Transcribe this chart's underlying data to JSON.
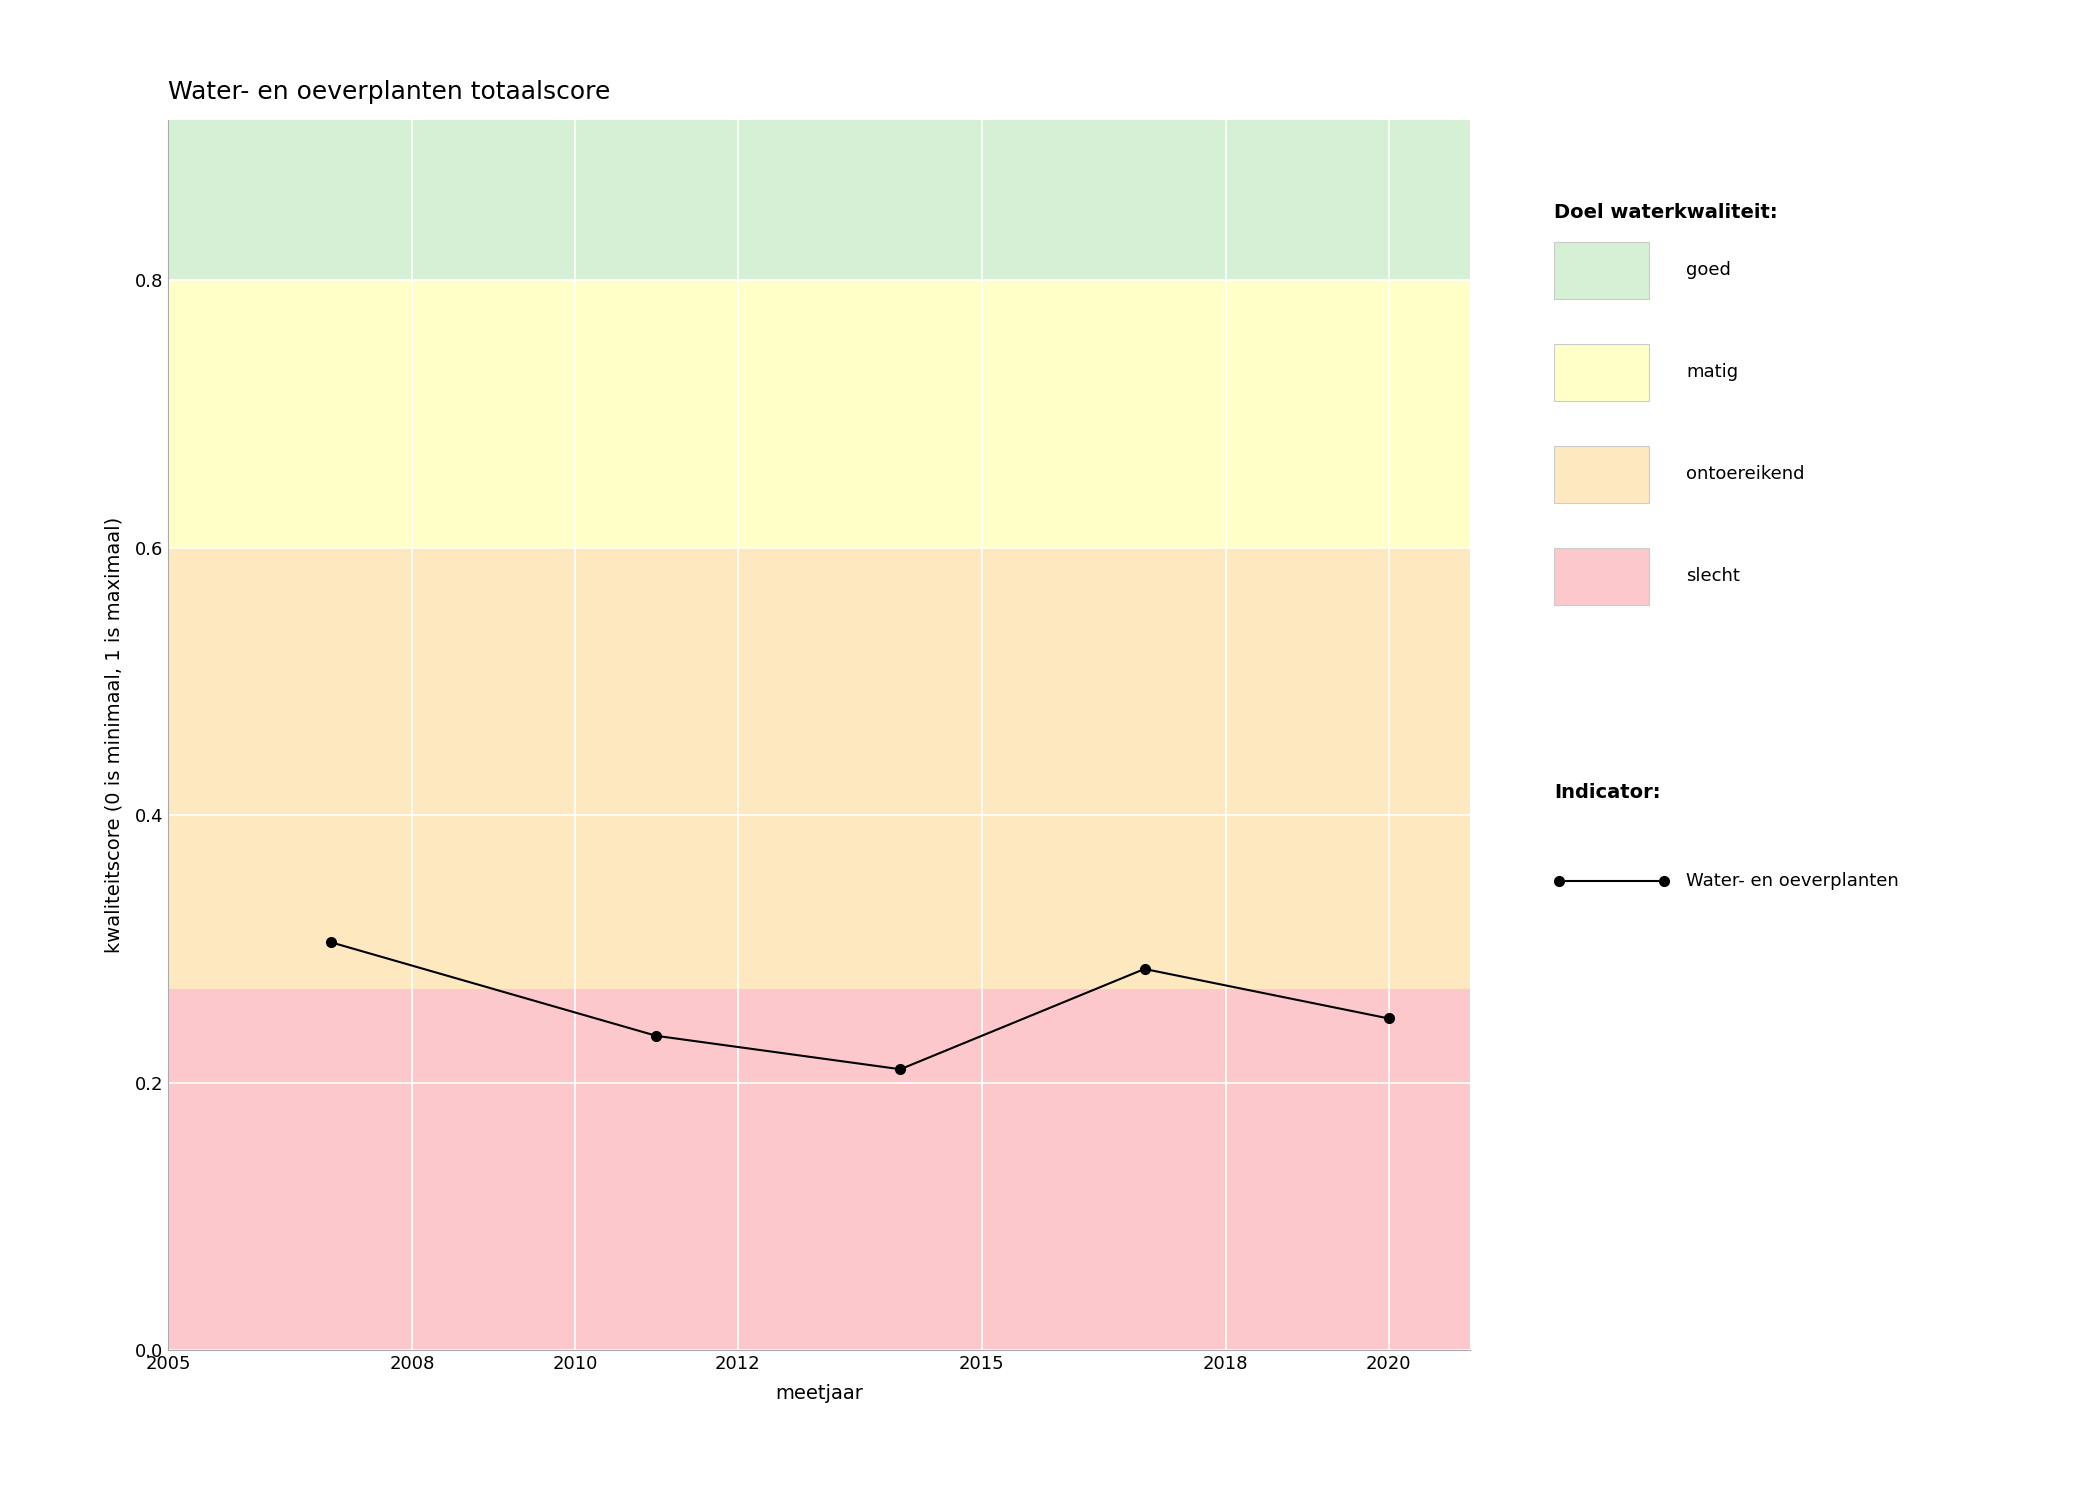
{
  "title": "Water- en oeverplanten totaalscore",
  "xlabel": "meetjaar",
  "ylabel": "kwaliteitscore (0 is minimaal, 1 is maximaal)",
  "years": [
    2007,
    2011,
    2014,
    2017,
    2020
  ],
  "values": [
    0.305,
    0.235,
    0.21,
    0.285,
    0.248
  ],
  "xlim": [
    2005,
    2021
  ],
  "ylim": [
    0.0,
    0.92
  ],
  "xticks": [
    2005,
    2008,
    2010,
    2012,
    2015,
    2018,
    2020
  ],
  "yticks": [
    0.0,
    0.2,
    0.4,
    0.6,
    0.8
  ],
  "bg_color": "#ffffff",
  "zones": [
    {
      "label": "goed",
      "ymin": 0.8,
      "ymax": 0.92,
      "color": "#d5f0d5"
    },
    {
      "label": "matig",
      "ymin": 0.6,
      "ymax": 0.8,
      "color": "#ffffc8"
    },
    {
      "label": "ontoereikend",
      "ymin": 0.27,
      "ymax": 0.6,
      "color": "#fde8c0"
    },
    {
      "label": "slecht",
      "ymin": 0.0,
      "ymax": 0.27,
      "color": "#fcc8cc"
    }
  ],
  "line_color": "#000000",
  "marker": "o",
  "marker_size": 7,
  "line_width": 1.5,
  "legend_zone_title": "Doel waterkwaliteit:",
  "legend_indicator_title": "Indicator:",
  "legend_indicator_label": "Water- en oeverplanten",
  "legend_zone_colors": [
    "#d5f0d5",
    "#ffffc8",
    "#fde8c0",
    "#fcc8cc"
  ],
  "legend_zone_labels": [
    "goed",
    "matig",
    "ontoereikend",
    "slecht"
  ],
  "title_fontsize": 18,
  "axis_label_fontsize": 14,
  "tick_fontsize": 13,
  "legend_fontsize": 13,
  "legend_title_fontsize": 14
}
